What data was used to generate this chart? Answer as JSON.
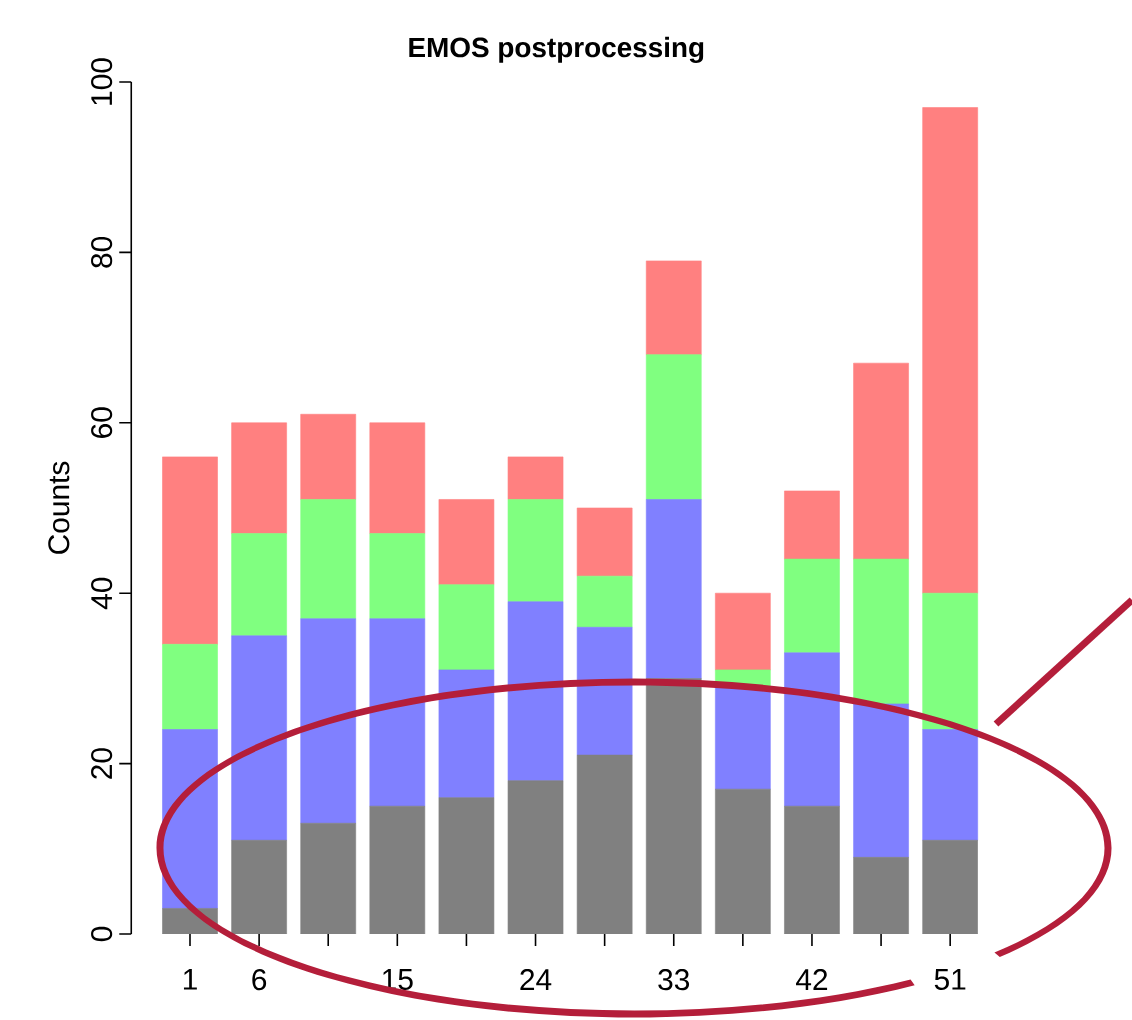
{
  "chart_data": {
    "type": "bar",
    "stacked": true,
    "title": "EMOS postprocessing",
    "ylabel": "Counts",
    "categories": [
      "1",
      "6",
      null,
      "15",
      null,
      "24",
      null,
      "33",
      null,
      "42",
      null,
      "51"
    ],
    "series": [
      {
        "color": "#808080",
        "values": [
          3,
          11,
          13,
          15,
          16,
          18,
          21,
          30,
          17,
          15,
          9,
          11
        ]
      },
      {
        "color": "#8080ff",
        "values": [
          21,
          24,
          24,
          22,
          15,
          21,
          15,
          21,
          12,
          18,
          18,
          13
        ]
      },
      {
        "color": "#80ff80",
        "values": [
          10,
          12,
          14,
          10,
          10,
          12,
          6,
          17,
          2,
          11,
          17,
          16
        ]
      },
      {
        "color": "#ff8080",
        "values": [
          22,
          13,
          10,
          13,
          10,
          5,
          8,
          11,
          9,
          8,
          23,
          57
        ]
      }
    ],
    "ylim": [
      0,
      100
    ],
    "yticks": [
      0,
      20,
      40,
      60,
      80,
      100
    ]
  }
}
